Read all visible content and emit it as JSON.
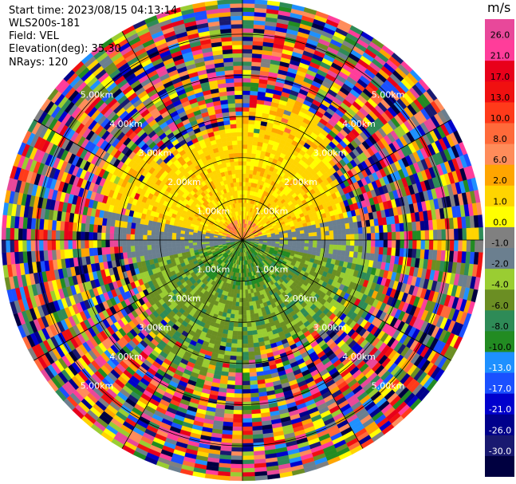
{
  "header": {
    "start_time": "Start time: 2023/08/15 04:13:14",
    "instrument": "WLS200s-181",
    "field": "Field: VEL",
    "elevation": "Elevation(deg): 35.30",
    "nrays": "NRays: 120"
  },
  "chart_data": {
    "type": "heatmap",
    "projection": "polar-ppi",
    "field": "VEL",
    "units": "m/s",
    "n_rays": 120,
    "elevation_deg": 35.3,
    "range_ring_labels": [
      "1.00km",
      "2.00km",
      "3.00km",
      "4.00km",
      "5.00km"
    ],
    "range_rings_km": [
      1,
      2,
      3,
      4,
      5
    ],
    "max_range_km": 5.85,
    "spokes_deg": [
      0,
      30,
      60,
      90,
      120,
      150,
      180,
      210,
      240,
      270,
      300,
      330
    ],
    "colorbar": {
      "tick_labels": [
        "26.0",
        "21.0",
        "17.0",
        "13.0",
        "10.0",
        "8.0",
        "6.0",
        "2.0",
        "1.0",
        "0.0",
        "-1.0",
        "-2.0",
        "-4.0",
        "-6.0",
        "-8.0",
        "-10.0",
        "-13.0",
        "-17.0",
        "-21.0",
        "-26.0",
        "-30.0"
      ],
      "colors": [
        "#e8489a",
        "#ff3d9a",
        "#e8001a",
        "#f01010",
        "#ff3a1a",
        "#ff6a3a",
        "#ff8c5a",
        "#ffa500",
        "#ffd400",
        "#ffff00",
        "#808080",
        "#6b7f8f",
        "#9acd32",
        "#6b8e23",
        "#2e8b57",
        "#228b22",
        "#1e90ff",
        "#1a50ff",
        "#0000cd",
        "#00008b",
        "#191970",
        "#000040"
      ]
    },
    "velocity_pattern": {
      "north_inner": "positive 1 to 6 (yellow) with small 8-13 core near center",
      "south_inner": "negative -1 to -8 (green)",
      "east_west_band": "near 0 (gray)",
      "outer_ring": "noise, all colors"
    }
  }
}
